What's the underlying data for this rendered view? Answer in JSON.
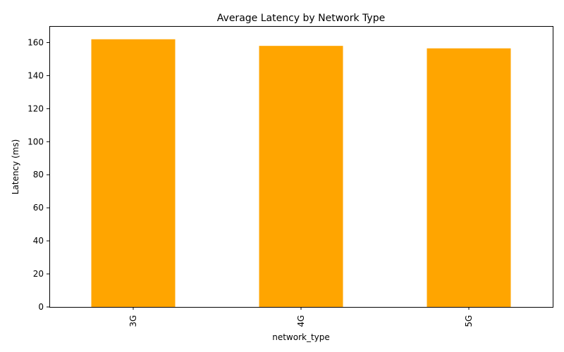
{
  "chart_data": {
    "type": "bar",
    "title": "Average Latency by Network Type",
    "xlabel": "network_type",
    "ylabel": "Latency (ms)",
    "categories": [
      "3G",
      "4G",
      "5G"
    ],
    "values": [
      162,
      158,
      156.5
    ],
    "ylim": [
      0,
      170
    ],
    "yticks": [
      0,
      20,
      40,
      60,
      80,
      100,
      120,
      140,
      160
    ],
    "bar_color": "#ffa500",
    "grid": false,
    "legend": "none"
  }
}
